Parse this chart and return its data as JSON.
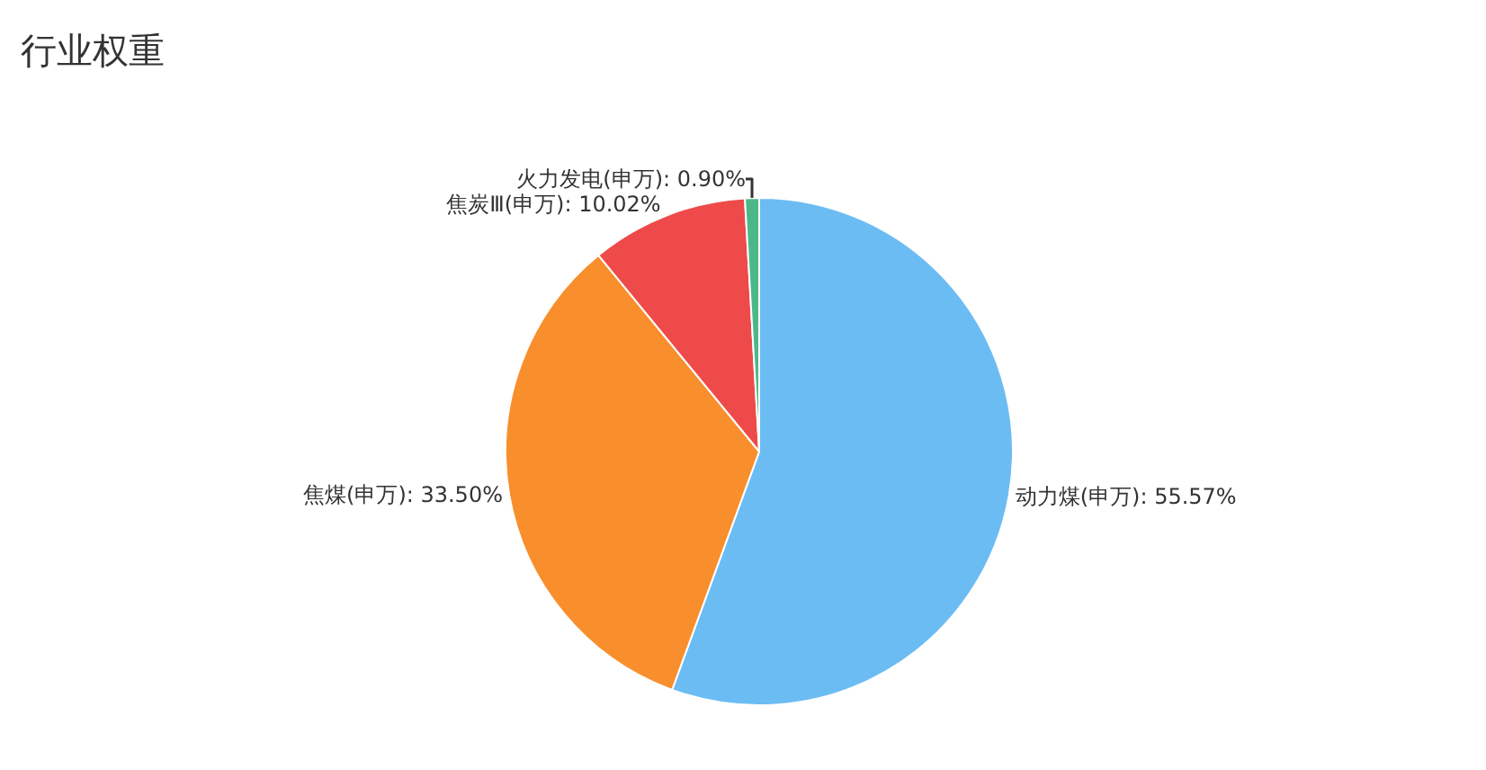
{
  "chart_data": {
    "type": "pie",
    "title": "行业权重",
    "categories": [
      "动力煤(申万)",
      "焦煤(申万)",
      "焦炭Ⅲ(申万)",
      "火力发电(申万)"
    ],
    "values": [
      55.57,
      33.5,
      10.02,
      0.9
    ],
    "value_labels": [
      "55.57%",
      "33.50%",
      "10.02%",
      "0.90%"
    ],
    "colors": [
      "#6cbcf4",
      "#f98e2c",
      "#ee4a4a",
      "#4cb88a"
    ],
    "legend": false
  }
}
